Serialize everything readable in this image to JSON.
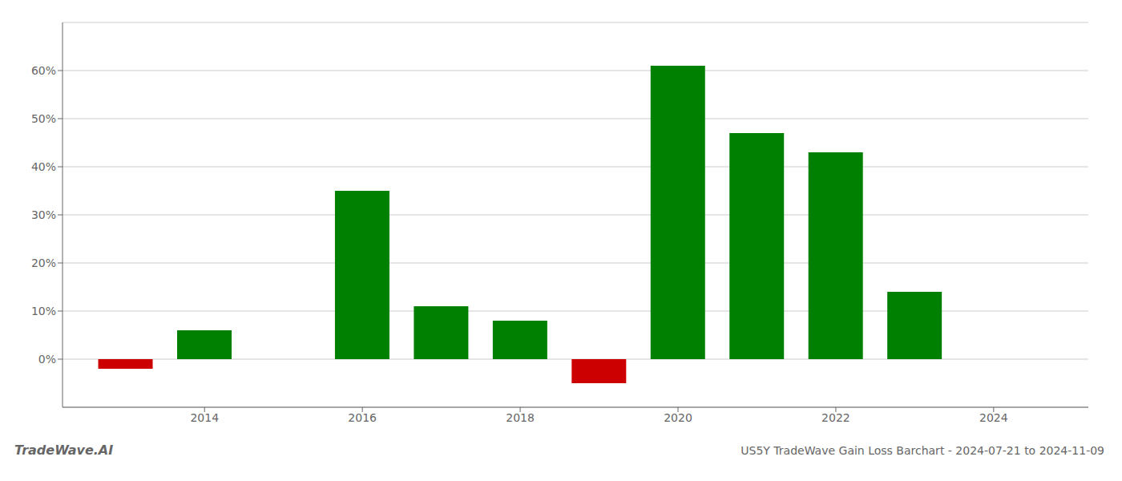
{
  "chart_data": {
    "type": "bar",
    "title": "US5Y TradeWave Gain Loss Barchart - 2024-07-21 to 2024-11-09",
    "annotations": [
      "TradeWave.AI"
    ],
    "x": [
      2013,
      2014,
      2016,
      2017,
      2018,
      2019,
      2020,
      2021,
      2022,
      2023
    ],
    "values": [
      -0.02,
      0.06,
      0.35,
      0.11,
      0.08,
      -0.05,
      0.61,
      0.47,
      0.43,
      0.14
    ],
    "colors": [
      "#cc0000",
      "#008000",
      "#008000",
      "#008000",
      "#008000",
      "#cc0000",
      "#008000",
      "#008000",
      "#008000",
      "#008000"
    ],
    "xlim": [
      2012.2,
      2025.2
    ],
    "xticks": [
      2014,
      2016,
      2018,
      2020,
      2022,
      2024
    ],
    "ylim": [
      -0.1,
      0.7
    ],
    "yticks": [
      {
        "value": 0.0,
        "label": "0%"
      },
      {
        "value": 0.1,
        "label": "10%"
      },
      {
        "value": 0.2,
        "label": "20%"
      },
      {
        "value": 0.3,
        "label": "30%"
      },
      {
        "value": 0.4,
        "label": "40%"
      },
      {
        "value": 0.5,
        "label": "50%"
      },
      {
        "value": 0.6,
        "label": "60%"
      }
    ],
    "grid": true
  }
}
